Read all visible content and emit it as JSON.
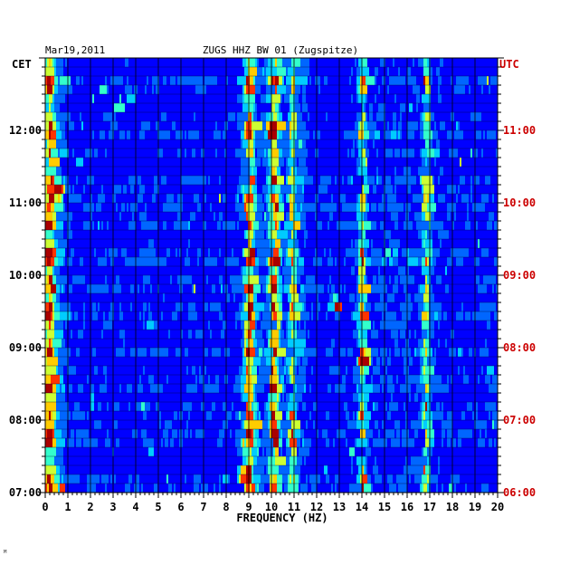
{
  "chart_data": {
    "type": "heatmap",
    "date": "Mar19,2011",
    "title": "ZUGS HHZ BW 01 (Zugspitze)",
    "left_axis_label": "CET",
    "right_axis_label": "UTC",
    "xlabel": "FREQUENCY (HZ)",
    "xlim": [
      0,
      20
    ],
    "x_ticks": [
      "0",
      "1",
      "2",
      "3",
      "4",
      "5",
      "6",
      "7",
      "8",
      "9",
      "10",
      "11",
      "12",
      "13",
      "14",
      "15",
      "16",
      "17",
      "18",
      "19",
      "20"
    ],
    "left_time_ticks": [
      "12:00",
      "11:00",
      "10:00",
      "09:00",
      "08:00",
      "07:00"
    ],
    "right_time_ticks": [
      "11:00",
      "10:00",
      "09:00",
      "08:00",
      "07:00",
      "06:00"
    ],
    "time_range_cet": [
      "07:00",
      "13:00"
    ],
    "rows": 48,
    "grid": true,
    "colorscale": [
      "#00007f",
      "#0000ff",
      "#0066ff",
      "#00ccff",
      "#33ffcc",
      "#ccff33",
      "#ffcc00",
      "#ff3300",
      "#aa0000"
    ],
    "dominant_frequency_bands_hz": [
      0.2,
      8.9,
      9.1,
      10.0,
      10.2,
      10.9,
      14.0,
      16.8
    ],
    "hotspots": [
      {
        "time_cet": "11:10",
        "freq_hz": 0.6,
        "level": 0.75
      },
      {
        "time_cet": "09:35",
        "freq_hz": 12.8,
        "level": 0.9
      },
      {
        "time_cet": "07:15",
        "freq_hz": 8.8,
        "level": 0.8
      },
      {
        "time_cet": "12:00",
        "freq_hz": 10.0,
        "level": 0.8
      },
      {
        "time_cet": "08:50",
        "freq_hz": 14.1,
        "level": 0.75
      }
    ],
    "color_axis_label": "UTC"
  },
  "footer_mark": "ᴹ"
}
